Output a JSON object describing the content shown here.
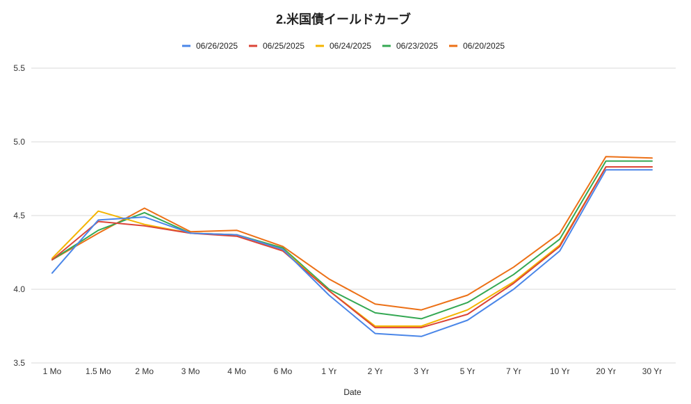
{
  "chart_data": {
    "type": "line",
    "title": "2.米国債イールドカーブ",
    "xlabel": "Date",
    "ylabel": "",
    "ylim": [
      3.5,
      5.5
    ],
    "yticks": [
      "3.5",
      "4.0",
      "4.5",
      "5.0",
      "5.5"
    ],
    "grid": true,
    "legend_position": "top",
    "categories": [
      "1 Mo",
      "1.5 Mo",
      "2 Mo",
      "3 Mo",
      "4 Mo",
      "6 Mo",
      "1 Yr",
      "2 Yr",
      "3 Yr",
      "5 Yr",
      "7 Yr",
      "10 Yr",
      "20 Yr",
      "30 Yr"
    ],
    "series": [
      {
        "name": "06/26/2025",
        "color": "#4a86e8",
        "values": [
          4.11,
          4.47,
          4.49,
          4.38,
          4.37,
          4.27,
          3.96,
          3.7,
          3.68,
          3.79,
          4.0,
          4.26,
          4.81,
          4.81
        ]
      },
      {
        "name": "06/25/2025",
        "color": "#db4437",
        "values": [
          4.2,
          4.46,
          4.43,
          4.38,
          4.36,
          4.26,
          3.99,
          3.74,
          3.74,
          3.83,
          4.04,
          4.29,
          4.83,
          4.83
        ]
      },
      {
        "name": "06/24/2025",
        "color": "#f4b400",
        "values": [
          4.21,
          4.53,
          4.44,
          4.38,
          4.37,
          4.27,
          3.99,
          3.75,
          3.75,
          3.86,
          4.05,
          4.3,
          4.83,
          4.83
        ]
      },
      {
        "name": "06/23/2025",
        "color": "#34a853",
        "values": [
          4.2,
          4.4,
          4.52,
          4.38,
          4.37,
          4.28,
          4.0,
          3.84,
          3.8,
          3.91,
          4.1,
          4.34,
          4.87,
          4.87
        ]
      },
      {
        "name": "06/20/2025",
        "color": "#ec7016",
        "values": [
          4.2,
          4.38,
          4.55,
          4.39,
          4.4,
          4.29,
          4.07,
          3.9,
          3.86,
          3.96,
          4.15,
          4.38,
          4.9,
          4.89
        ]
      }
    ]
  }
}
